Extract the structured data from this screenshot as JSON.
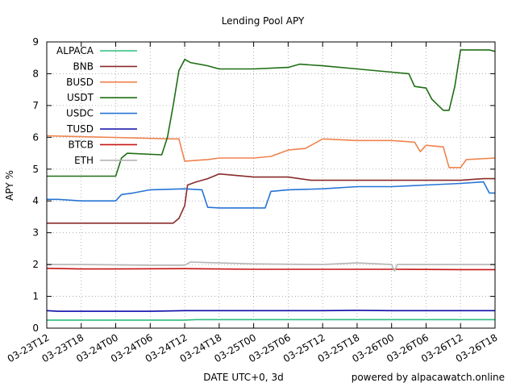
{
  "chart_data": {
    "type": "line",
    "title": "Lending Pool APY",
    "xlabel": "DATE UTC+0, 3d",
    "ylabel": "APY %",
    "credit": "powered by alpacawatch.online",
    "ylim": [
      0,
      9
    ],
    "xlim": [
      "03-23T12",
      "03-26T18"
    ],
    "y_ticks": [
      "0",
      "1",
      "2",
      "3",
      "4",
      "5",
      "6",
      "7",
      "8",
      "9"
    ],
    "x_ticks": [
      "03-23T12",
      "03-23T18",
      "03-24T00",
      "03-24T06",
      "03-24T12",
      "03-24T18",
      "03-25T00",
      "03-25T06",
      "03-25T12",
      "03-25T18",
      "03-26T00",
      "03-26T06",
      "03-26T12",
      "03-26T18"
    ],
    "grid": true,
    "legend_position": "top-left",
    "series": [
      {
        "name": "ALPACA",
        "color": "#2ebd7f",
        "x": [
          "03-23T12",
          "03-24T12",
          "03-24T14",
          "03-24T15",
          "03-26T18"
        ],
        "y": [
          0.25,
          0.25,
          0.27,
          0.27,
          0.27
        ]
      },
      {
        "name": "BNB",
        "color": "#8b2a2a",
        "x": [
          "03-23T12",
          "03-24T09",
          "03-24T10",
          "03-24T11",
          "03-24T12",
          "03-24T12.5",
          "03-24T14",
          "03-24T15",
          "03-24T16",
          "03-24T18",
          "03-25T00",
          "03-25T06",
          "03-25T10",
          "03-25T12",
          "03-25T18",
          "03-26T00",
          "03-26T06",
          "03-26T12",
          "03-26T16",
          "03-26T18"
        ],
        "y": [
          3.3,
          3.3,
          3.3,
          3.45,
          3.85,
          4.5,
          4.6,
          4.65,
          4.7,
          4.85,
          4.75,
          4.75,
          4.65,
          4.65,
          4.65,
          4.65,
          4.65,
          4.65,
          4.7,
          4.7
        ]
      },
      {
        "name": "BUSD",
        "color": "#f0824e",
        "x": [
          "03-23T12",
          "03-24T10",
          "03-24T11",
          "03-24T12",
          "03-24T16",
          "03-24T18",
          "03-25T00",
          "03-25T03",
          "03-25T06",
          "03-25T09",
          "03-25T12",
          "03-25T18",
          "03-26T00",
          "03-26T04",
          "03-26T05",
          "03-26T06",
          "03-26T09",
          "03-26T10",
          "03-26T12",
          "03-26T13",
          "03-26T18"
        ],
        "y": [
          6.05,
          5.95,
          5.95,
          5.25,
          5.3,
          5.35,
          5.35,
          5.4,
          5.6,
          5.65,
          5.95,
          5.9,
          5.9,
          5.85,
          5.55,
          5.75,
          5.7,
          5.05,
          5.05,
          5.3,
          5.35
        ]
      },
      {
        "name": "USDT",
        "color": "#1e6e14",
        "x": [
          "03-23T12",
          "03-23T18",
          "03-24T00",
          "03-24T01",
          "03-24T02",
          "03-24T08",
          "03-24T09",
          "03-24T10",
          "03-24T11",
          "03-24T12",
          "03-24T13",
          "03-24T16",
          "03-24T18",
          "03-25T00",
          "03-25T06",
          "03-25T08",
          "03-25T12",
          "03-25T18",
          "03-26T00",
          "03-26T03",
          "03-26T04",
          "03-26T06",
          "03-26T07",
          "03-26T09",
          "03-26T10",
          "03-26T11",
          "03-26T12",
          "03-26T14",
          "03-26T17",
          "03-26T18"
        ],
        "y": [
          4.78,
          4.78,
          4.78,
          5.35,
          5.5,
          5.45,
          6.0,
          7.0,
          8.1,
          8.45,
          8.35,
          8.25,
          8.15,
          8.15,
          8.2,
          8.3,
          8.25,
          8.15,
          8.05,
          8.0,
          7.6,
          7.55,
          7.2,
          6.85,
          6.85,
          7.6,
          8.75,
          8.75,
          8.75,
          8.7
        ]
      },
      {
        "name": "USDC",
        "color": "#2674d4",
        "x": [
          "03-23T12",
          "03-23T14",
          "03-23T18",
          "03-24T00",
          "03-24T01",
          "03-24T03",
          "03-24T06",
          "03-24T12",
          "03-24T15",
          "03-24T16",
          "03-24T18",
          "03-25T00",
          "03-25T02",
          "03-25T03",
          "03-25T06",
          "03-25T12",
          "03-25T18",
          "03-26T00",
          "03-26T06",
          "03-26T12",
          "03-26T16",
          "03-26T17",
          "03-26T18"
        ],
        "y": [
          4.05,
          4.05,
          4.0,
          4.0,
          4.2,
          4.25,
          4.35,
          4.38,
          4.35,
          3.8,
          3.78,
          3.78,
          3.78,
          4.3,
          4.35,
          4.38,
          4.45,
          4.45,
          4.5,
          4.55,
          4.6,
          4.25,
          4.25
        ]
      },
      {
        "name": "TUSD",
        "color": "#0a0aa8",
        "x": [
          "03-23T12",
          "03-23T14",
          "03-24T06",
          "03-24T12",
          "03-25T00",
          "03-25T12",
          "03-25T18",
          "03-26T00",
          "03-26T18"
        ],
        "y": [
          0.55,
          0.53,
          0.53,
          0.55,
          0.55,
          0.55,
          0.56,
          0.55,
          0.55
        ]
      },
      {
        "name": "BTCB",
        "color": "#c81414",
        "x": [
          "03-23T12",
          "03-23T18",
          "03-24T00",
          "03-24T12",
          "03-25T00",
          "03-25T12",
          "03-26T00",
          "03-26T12",
          "03-26T18"
        ],
        "y": [
          1.88,
          1.86,
          1.86,
          1.87,
          1.85,
          1.85,
          1.85,
          1.84,
          1.84
        ]
      },
      {
        "name": "ETH",
        "color": "#b4b4b4",
        "x": [
          "03-23T12",
          "03-23T18",
          "03-24T06",
          "03-24T12",
          "03-24T13",
          "03-25T00",
          "03-25T12",
          "03-25T18",
          "03-26T00",
          "03-26T00.5",
          "03-26T01",
          "03-26T12",
          "03-26T18"
        ],
        "y": [
          2.0,
          2.0,
          1.98,
          1.98,
          2.08,
          2.02,
          2.0,
          2.05,
          2.0,
          1.8,
          2.0,
          2.0,
          2.0
        ]
      }
    ]
  }
}
